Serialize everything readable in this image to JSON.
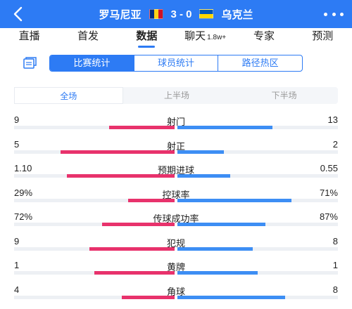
{
  "header": {
    "home_team": "罗马尼亚",
    "away_team": "乌克兰",
    "score": "3 - 0",
    "accent_color": "#2d7bf4",
    "back_icon": "back-arrow-icon",
    "more_icon": "more-dots-icon"
  },
  "nav": {
    "items": [
      {
        "label": "直播"
      },
      {
        "label": "首发"
      },
      {
        "label": "数据"
      },
      {
        "label": "聊天",
        "badge": "1.8w+"
      },
      {
        "label": "专家"
      },
      {
        "label": "预测"
      }
    ],
    "active_index": 2
  },
  "segment": {
    "icon": "document-icon",
    "tabs": [
      "比赛统计",
      "球员统计",
      "路径热区"
    ],
    "active_index": 0
  },
  "period": {
    "tabs": [
      "全场",
      "上半场",
      "下半场"
    ],
    "active_index": 0
  },
  "stats": [
    {
      "name": "射门",
      "left": "9",
      "right": "13",
      "left_ratio": 0.41,
      "right_ratio": 0.59
    },
    {
      "name": "射正",
      "left": "5",
      "right": "2",
      "left_ratio": 0.71,
      "right_ratio": 0.29
    },
    {
      "name": "预期进球",
      "left": "1.10",
      "right": "0.55",
      "left_ratio": 0.67,
      "right_ratio": 0.33
    },
    {
      "name": "控球率",
      "left": "29%",
      "right": "71%",
      "left_ratio": 0.29,
      "right_ratio": 0.71
    },
    {
      "name": "传球成功率",
      "left": "72%",
      "right": "87%",
      "left_ratio": 0.45,
      "right_ratio": 0.55
    },
    {
      "name": "犯规",
      "left": "9",
      "right": "8",
      "left_ratio": 0.53,
      "right_ratio": 0.47
    },
    {
      "name": "黄牌",
      "left": "1",
      "right": "1",
      "left_ratio": 0.5,
      "right_ratio": 0.5
    },
    {
      "name": "角球",
      "left": "4",
      "right": "8",
      "left_ratio": 0.33,
      "right_ratio": 0.67
    }
  ],
  "colors": {
    "home_bar": "#e8326c",
    "away_bar": "#3d8ef4"
  }
}
